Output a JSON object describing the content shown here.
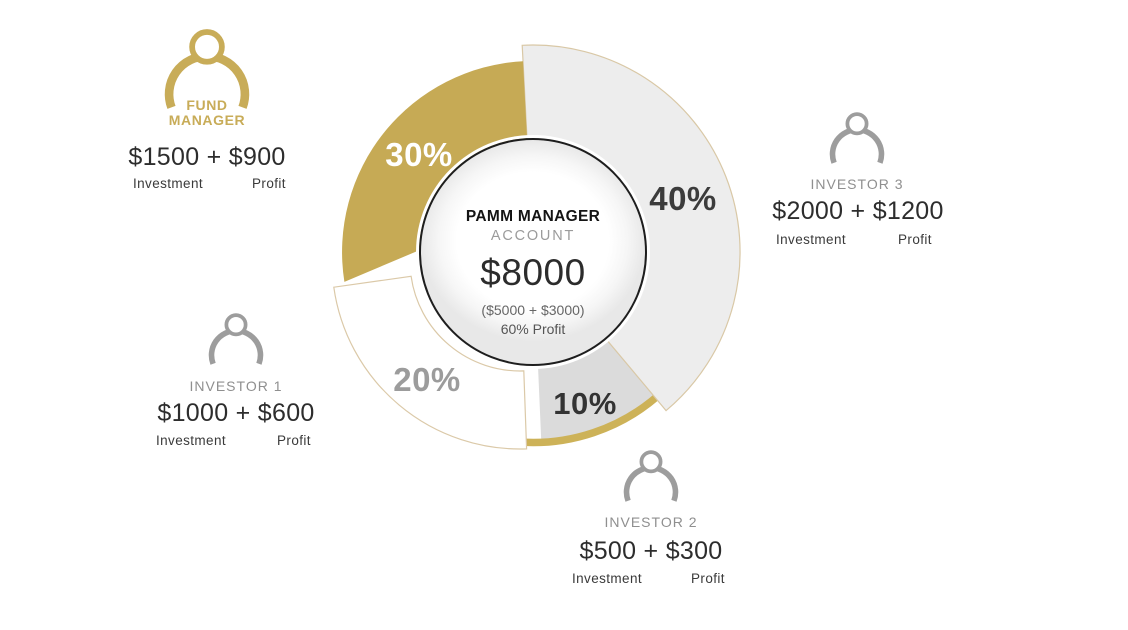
{
  "chart_data": {
    "type": "pie",
    "title": "PAMM MANAGER ACCOUNT",
    "center": {
      "title": "PAMM MANAGER",
      "subtitle": "ACCOUNT",
      "amount": "$8000",
      "breakdown": "($5000 + $3000)",
      "profit": "60% Profit"
    },
    "slices": [
      {
        "label": "40%",
        "value": 40,
        "owner": "INVESTOR 3",
        "color": "#EDEDED",
        "label_color": "#3C3C3C"
      },
      {
        "label": "10%",
        "value": 10,
        "owner": "INVESTOR 2",
        "color": "#DBDBDB",
        "label_color": "#333333"
      },
      {
        "label": "20%",
        "value": 20,
        "owner": "INVESTOR 1",
        "color": "#FFFFFF",
        "label_color": "#9C9C9C"
      },
      {
        "label": "30%",
        "value": 30,
        "owner": "FUND MANAGER",
        "color": "#C6AA55",
        "label_color": "#FFFFFF"
      }
    ],
    "start_angle_deg": -3,
    "legend_position": "around",
    "accent_gold": "#C6AA55",
    "rim_accent_color": "#CDB258"
  },
  "groups": {
    "fund_manager": {
      "role_line1": "FUND",
      "role_line2": "MANAGER",
      "amount": "$1500 + $900",
      "investment_label": "Investment",
      "profit_label": "Profit",
      "color": "#C8AC58"
    },
    "investor1": {
      "name": "INVESTOR 1",
      "amount": "$1000 + $600",
      "investment_label": "Investment",
      "profit_label": "Profit"
    },
    "investor2": {
      "name": "INVESTOR 2",
      "amount": "$500 + $300",
      "investment_label": "Investment",
      "profit_label": "Profit"
    },
    "investor3": {
      "name": "INVESTOR 3",
      "amount": "$2000 + $1200",
      "investment_label": "Investment",
      "profit_label": "Profit"
    }
  }
}
